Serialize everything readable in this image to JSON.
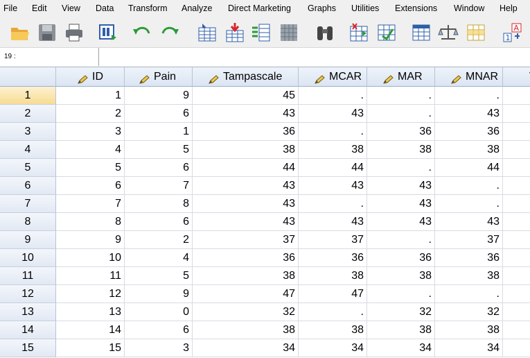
{
  "menu": [
    "File",
    "Edit",
    "View",
    "Data",
    "Transform",
    "Analyze",
    "Direct Marketing",
    "Graphs",
    "Utilities",
    "Extensions",
    "Window",
    "Help"
  ],
  "toolbar": {
    "icons": [
      "open-data-icon",
      "save-icon",
      "print-icon",
      "recall-dialog-icon",
      "undo-icon",
      "redo-icon",
      "go-to-case-icon",
      "go-to-variable-icon",
      "variables-icon",
      "find-icon",
      "binoculars-icon",
      "insert-cases-icon",
      "insert-variable-icon",
      "split-file-icon",
      "weight-cases-icon",
      "select-cases-icon",
      "value-labels-icon"
    ]
  },
  "cellbar": {
    "ref": "19 :",
    "value": ""
  },
  "grid": {
    "columns": [
      "ID",
      "Pain",
      "Tampascale",
      "MCAR",
      "MAR",
      "MNAR"
    ],
    "partial_column_label": "V",
    "rows": [
      [
        "1",
        "9",
        "45",
        ".",
        ".",
        "."
      ],
      [
        "2",
        "6",
        "43",
        "43",
        ".",
        "43"
      ],
      [
        "3",
        "1",
        "36",
        ".",
        "36",
        "36"
      ],
      [
        "4",
        "5",
        "38",
        "38",
        "38",
        "38"
      ],
      [
        "5",
        "6",
        "44",
        "44",
        ".",
        "44"
      ],
      [
        "6",
        "7",
        "43",
        "43",
        "43",
        "."
      ],
      [
        "7",
        "8",
        "43",
        ".",
        "43",
        "."
      ],
      [
        "8",
        "6",
        "43",
        "43",
        "43",
        "43"
      ],
      [
        "9",
        "2",
        "37",
        "37",
        ".",
        "37"
      ],
      [
        "10",
        "4",
        "36",
        "36",
        "36",
        "36"
      ],
      [
        "11",
        "5",
        "38",
        "38",
        "38",
        "38"
      ],
      [
        "12",
        "9",
        "47",
        "47",
        ".",
        "."
      ],
      [
        "13",
        "0",
        "32",
        ".",
        "32",
        "32"
      ],
      [
        "14",
        "6",
        "38",
        "38",
        "38",
        "38"
      ],
      [
        "15",
        "3",
        "34",
        "34",
        "34",
        "34"
      ]
    ],
    "row_numbers": [
      "1",
      "2",
      "3",
      "4",
      "5",
      "6",
      "7",
      "8",
      "9",
      "10",
      "11",
      "12",
      "13",
      "14",
      "15"
    ],
    "selected_row": 0
  },
  "colors": {
    "header_bg": "#dbe5f3",
    "selected_row": "#f7dc93",
    "menubar": "#f0f0f0"
  }
}
